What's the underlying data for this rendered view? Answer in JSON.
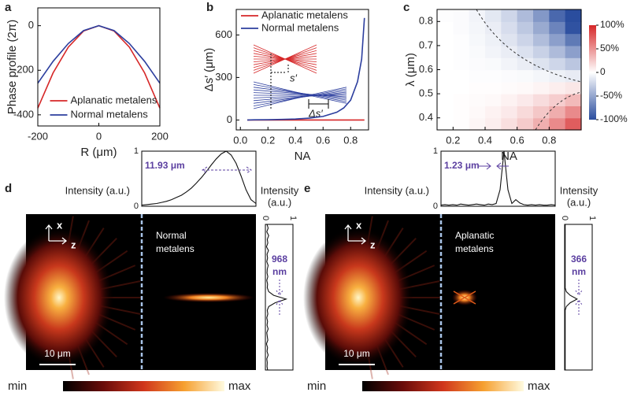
{
  "chart_data": [
    {
      "panel": "a",
      "type": "line",
      "xlabel": "R (μm)",
      "ylabel": "Phase profile (2π)",
      "x": [
        -200,
        -150,
        -100,
        -50,
        0,
        50,
        100,
        150,
        200
      ],
      "series": [
        {
          "name": "Aplanatic metalens",
          "color": "#d62728",
          "values": [
            -370,
            -212,
            -96,
            -24,
            0,
            -24,
            -96,
            -212,
            -370
          ]
        },
        {
          "name": "Normal metalens",
          "color": "#2c3e9e",
          "values": [
            -258,
            -160,
            -80,
            -22,
            0,
            -22,
            -80,
            -160,
            -258
          ]
        }
      ],
      "xlim": [
        -200,
        200
      ],
      "ylim": [
        -450,
        80
      ],
      "xticks": [
        -200,
        0,
        200
      ],
      "yticks": [
        -400,
        -200,
        0
      ],
      "legend": "lower center"
    },
    {
      "panel": "b",
      "type": "line",
      "xlabel": "NA",
      "ylabel": "Δs′ (μm)",
      "x": [
        0.05,
        0.1,
        0.2,
        0.3,
        0.4,
        0.5,
        0.6,
        0.7,
        0.75,
        0.8,
        0.85,
        0.88,
        0.9
      ],
      "series": [
        {
          "name": "Aplanatic metalens",
          "color": "#d62728",
          "values": [
            0,
            0,
            0,
            0,
            0,
            0,
            0,
            0,
            0,
            0,
            0,
            0,
            0
          ]
        },
        {
          "name": "Normal metalens",
          "color": "#2c3e9e",
          "values": [
            0,
            1,
            2,
            4,
            7,
            13,
            25,
            55,
            85,
            140,
            270,
            430,
            720
          ]
        }
      ],
      "xlim": [
        -0.03,
        0.93
      ],
      "ylim": [
        -70,
        780
      ],
      "xticks": [
        {
          "value": 0,
          "label": "0.0"
        },
        0.2,
        0.4,
        0.6,
        0.8
      ],
      "yticks": [
        0,
        300,
        600
      ],
      "legend": "upper left",
      "annotations": [
        "s′",
        "Δs′"
      ]
    },
    {
      "panel": "c",
      "type": "heatmap",
      "xlabel": "NA",
      "ylabel": "λ (μm)",
      "x": [
        0.15,
        0.25,
        0.35,
        0.45,
        0.55,
        0.65,
        0.75,
        0.85,
        0.95
      ],
      "y": [
        0.375,
        0.425,
        0.475,
        0.525,
        0.575,
        0.625,
        0.675,
        0.725,
        0.775,
        0.825
      ],
      "z": [
        [
          0,
          1,
          4,
          8,
          15,
          24,
          37,
          54,
          75
        ],
        [
          0,
          1,
          3,
          6,
          10,
          17,
          26,
          38,
          54
        ],
        [
          0,
          1,
          2,
          3,
          6,
          10,
          16,
          23,
          32
        ],
        [
          0,
          0,
          1,
          1,
          2,
          3,
          5,
          8,
          11
        ],
        [
          0,
          0,
          -1,
          -1,
          -2,
          -3,
          -5,
          -8,
          -11
        ],
        [
          0,
          -1,
          -2,
          -3,
          -6,
          -10,
          -16,
          -23,
          -32
        ],
        [
          0,
          -1,
          -3,
          -6,
          -10,
          -17,
          -26,
          -38,
          -54
        ],
        [
          0,
          -1,
          -4,
          -8,
          -15,
          -24,
          -37,
          -54,
          -75
        ],
        [
          0,
          -2,
          -5,
          -10,
          -19,
          -31,
          -48,
          -69,
          -97
        ],
        [
          -1,
          -2,
          -6,
          -13,
          -23,
          -38,
          -58,
          -85,
          -100
        ]
      ],
      "xlim": [
        0.1,
        1.0
      ],
      "ylim": [
        0.35,
        0.85
      ],
      "xticks": [
        0.2,
        0.4,
        0.6,
        0.8
      ],
      "yticks": [
        0.4,
        0.5,
        0.6,
        0.7,
        0.8
      ],
      "colorbar": {
        "lim": [
          -100,
          100
        ],
        "colors": [
          "#2a4d9e",
          "#ffffff",
          "#d62728"
        ],
        "ticks": [
          {
            "value": 100,
            "label": "100%"
          },
          {
            "value": 50,
            "label": "50%"
          },
          0,
          {
            "value": -50,
            "label": "-50%"
          },
          {
            "value": -100,
            "label": "-100%"
          }
        ]
      }
    },
    {
      "panel": "d",
      "type": "intensity-map",
      "lens": [
        "Normal",
        "metalens"
      ],
      "axes": [
        "x",
        "z"
      ],
      "scale_bar": "10 μm",
      "colorbar": [
        "min",
        "max"
      ],
      "top_profile": {
        "ylabel": "Intensity (a.u.)",
        "ylim": [
          0,
          1
        ],
        "yticks": [
          0,
          1
        ],
        "annotation": "11.93 μm",
        "values": [
          0.02,
          0.03,
          0.04,
          0.05,
          0.07,
          0.09,
          0.12,
          0.16,
          0.2,
          0.26,
          0.33,
          0.42,
          0.52,
          0.63,
          0.75,
          0.86,
          0.95,
          1,
          0.93,
          0.78,
          0.55,
          0.3,
          0.12,
          0.05
        ]
      },
      "side_profile": {
        "xlabel": [
          "Intensity",
          "(a.u.)"
        ],
        "xlim": [
          0,
          1
        ],
        "xticks": [
          0,
          1
        ],
        "annotation": [
          "968",
          "nm"
        ],
        "values": [
          0.06,
          0.1,
          0.05,
          0.12,
          0.07,
          0.09,
          0.04,
          0.11,
          0.06,
          0.08,
          0.05,
          0.1,
          0.07,
          0.06,
          0.09,
          0.05,
          0.08,
          0.07,
          0.12,
          0.3,
          0.75,
          0.35,
          0.12,
          0.07,
          0.09,
          0.05,
          0.08,
          0.06,
          0.1,
          0.05,
          0.07,
          0.09,
          0.04,
          0.08,
          0.06,
          0.1,
          0.05,
          0.07,
          0.06,
          0.08
        ]
      }
    },
    {
      "panel": "e",
      "type": "intensity-map",
      "lens": [
        "Aplanatic",
        "metalens"
      ],
      "axes": [
        "x",
        "z"
      ],
      "scale_bar": "10 μm",
      "colorbar": [
        "min",
        "max"
      ],
      "top_profile": {
        "ylabel": "Intensity (a.u.)",
        "ylim": [
          0,
          1
        ],
        "yticks": [
          0,
          1
        ],
        "annotation": "1.23 μm",
        "values": [
          0.02,
          0.03,
          0.02,
          0.03,
          0.02,
          0.04,
          0.03,
          0.02,
          0.03,
          0.04,
          0.03,
          0.02,
          0.04,
          0.03,
          0.05,
          0.3,
          1,
          0.3,
          0.05,
          0.12,
          0.06,
          0.03,
          0.02,
          0.03,
          0.02,
          0.03,
          0.02,
          0.02,
          0.03,
          0.02
        ]
      },
      "side_profile": {
        "xlabel": [
          "Intensity",
          "(a.u.)"
        ],
        "xlim": [
          0,
          1
        ],
        "xticks": [
          0,
          1
        ],
        "annotation": [
          "366",
          "nm"
        ],
        "values": [
          0.02,
          0.02,
          0.02,
          0.02,
          0.02,
          0.02,
          0.02,
          0.02,
          0.02,
          0.02,
          0.02,
          0.02,
          0.02,
          0.02,
          0.02,
          0.02,
          0.02,
          0.02,
          0.06,
          0.2,
          0.45,
          0.2,
          0.06,
          0.02,
          0.02,
          0.02,
          0.02,
          0.02,
          0.02,
          0.02,
          0.02,
          0.02,
          0.02,
          0.02,
          0.02,
          0.02,
          0.02,
          0.02,
          0.02,
          0.02
        ]
      }
    }
  ]
}
